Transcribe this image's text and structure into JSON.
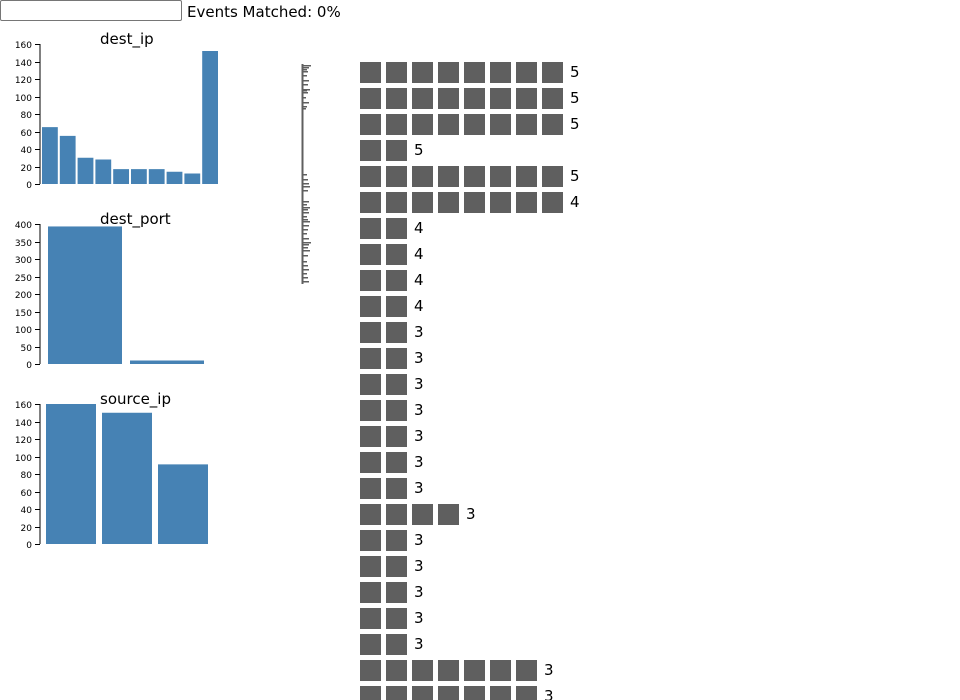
{
  "search": {
    "value": "",
    "placeholder": ""
  },
  "match_label": "Events Matched: 0%",
  "colors": {
    "bar": "#4682b4",
    "square": "#5f5f5f",
    "axis": "#000000",
    "timeline": "#5f5f5f"
  },
  "charts": [
    {
      "title": "dest_ip",
      "chart_data": {
        "type": "bar",
        "title": "dest_ip",
        "categories": [
          "",
          "",
          "",
          "",
          "",
          "",
          "",
          "",
          "",
          ""
        ],
        "values": [
          65,
          55,
          30,
          28,
          17,
          17,
          17,
          14,
          12,
          152
        ],
        "ylim": [
          0,
          160
        ],
        "yticks": [
          0,
          20,
          40,
          60,
          80,
          100,
          120,
          140,
          160
        ],
        "ytick_labels": [
          "0",
          "20",
          "40",
          "60",
          "80",
          "100",
          "120",
          "140",
          "160"
        ]
      }
    },
    {
      "title": "dest_port",
      "chart_data": {
        "type": "bar",
        "title": "dest_port",
        "categories": [
          "",
          ""
        ],
        "values": [
          393,
          10
        ],
        "ylim": [
          0,
          400
        ],
        "yticks": [
          0,
          50,
          100,
          150,
          200,
          250,
          300,
          350,
          400
        ],
        "ytick_labels": [
          "0",
          "50",
          "100",
          "150",
          "200",
          "250",
          "300",
          "350",
          "400"
        ]
      }
    },
    {
      "title": "source_ip",
      "chart_data": {
        "type": "bar",
        "title": "source_ip",
        "categories": [
          "",
          "",
          ""
        ],
        "values": [
          160,
          150,
          91
        ],
        "ylim": [
          0,
          160
        ],
        "yticks": [
          0,
          20,
          40,
          60,
          80,
          100,
          120,
          140,
          160
        ],
        "ytick_labels": [
          "0",
          "20",
          "40",
          "60",
          "80",
          "100",
          "120",
          "140",
          "160"
        ]
      }
    }
  ],
  "waffle": {
    "rows": [
      {
        "squares": 8,
        "count": "5"
      },
      {
        "squares": 8,
        "count": "5"
      },
      {
        "squares": 8,
        "count": "5"
      },
      {
        "squares": 2,
        "count": "5"
      },
      {
        "squares": 8,
        "count": "5"
      },
      {
        "squares": 8,
        "count": "4"
      },
      {
        "squares": 2,
        "count": "4"
      },
      {
        "squares": 2,
        "count": "4"
      },
      {
        "squares": 2,
        "count": "4"
      },
      {
        "squares": 2,
        "count": "4"
      },
      {
        "squares": 2,
        "count": "3"
      },
      {
        "squares": 2,
        "count": "3"
      },
      {
        "squares": 2,
        "count": "3"
      },
      {
        "squares": 2,
        "count": "3"
      },
      {
        "squares": 2,
        "count": "3"
      },
      {
        "squares": 2,
        "count": "3"
      },
      {
        "squares": 2,
        "count": "3"
      },
      {
        "squares": 4,
        "count": "3"
      },
      {
        "squares": 2,
        "count": "3"
      },
      {
        "squares": 2,
        "count": "3"
      },
      {
        "squares": 2,
        "count": "3"
      },
      {
        "squares": 2,
        "count": "3"
      },
      {
        "squares": 2,
        "count": "3"
      },
      {
        "squares": 7,
        "count": "3"
      },
      {
        "squares": 7,
        "count": "3"
      }
    ]
  }
}
